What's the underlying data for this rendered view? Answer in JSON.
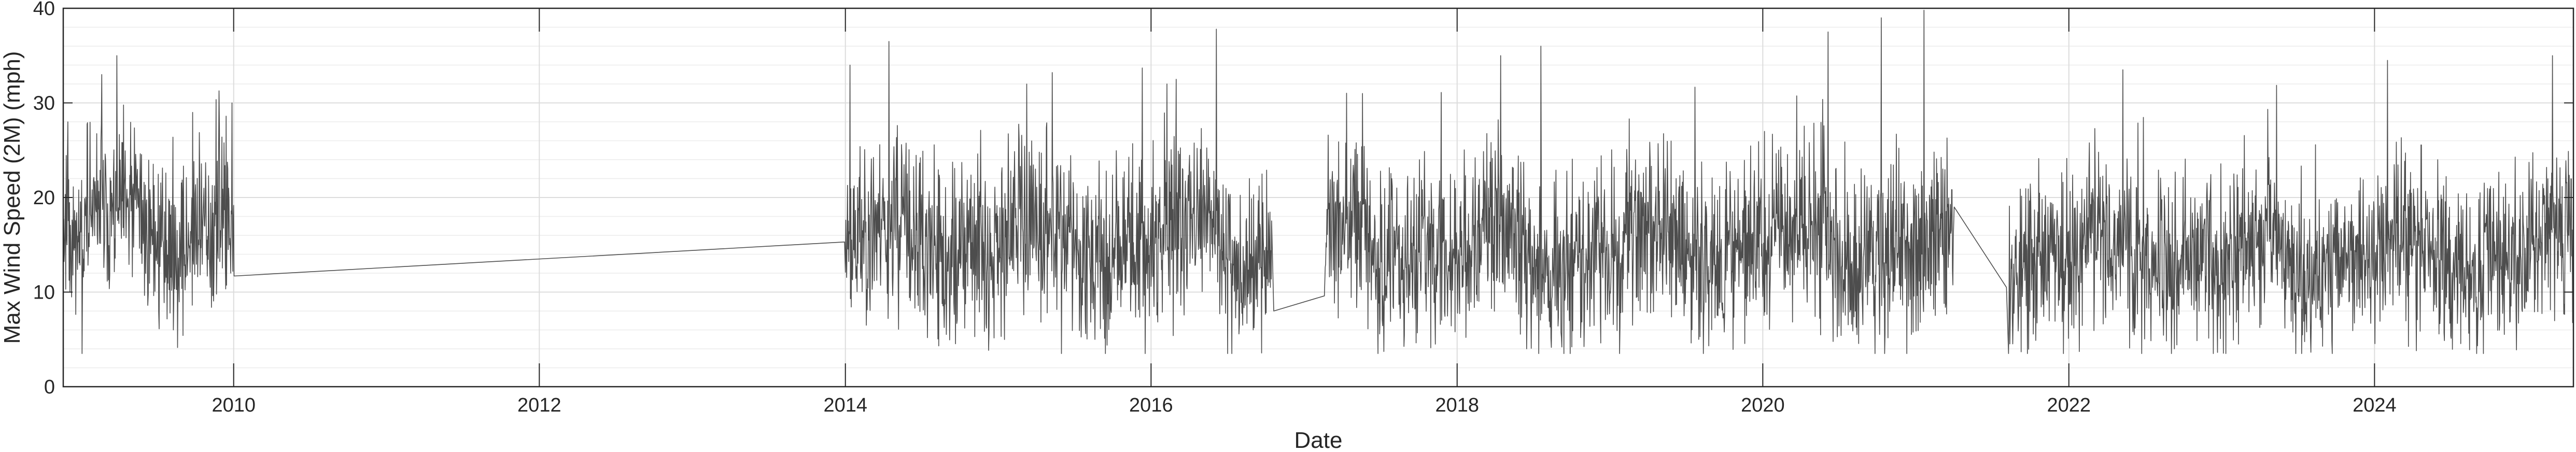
{
  "chart_data": {
    "type": "line",
    "title": "",
    "xlabel": "Date",
    "ylabel": "Max Wind Speed (2M) (mph)",
    "xlim": [
      "2008-11-20",
      "2025-04-20"
    ],
    "ylim": [
      0,
      40
    ],
    "x_ticks": [
      "2010",
      "2012",
      "2014",
      "2016",
      "2018",
      "2020",
      "2022",
      "2024"
    ],
    "y_ticks": [
      "0",
      "10",
      "20",
      "30",
      "40"
    ],
    "grid": true,
    "minor_grid": true,
    "line_color": "#4d4d4d",
    "series": [
      {
        "name": "",
        "segments": [
          {
            "start": "2008-11-20",
            "end": "2010-01-01",
            "mean": 16.5,
            "spread": 4.6,
            "seed": 11,
            "points": [
              [
                "2008-12-01",
                28.0
              ],
              [
                "2009-01-04",
                3.5
              ],
              [
                "2009-02-20",
                33.0
              ],
              [
                "2009-03-28",
                35.0
              ],
              [
                "2009-08-10",
                6.0
              ],
              [
                "2009-09-25",
                29.0
              ],
              [
                "2009-12-28",
                30.0
              ]
            ]
          },
          {
            "start": "2010-01-01",
            "end": "2014-01-01",
            "link": [
              [
                "2010-01-02",
                11.7
              ],
              [
                "2013-12-30",
                15.3
              ]
            ]
          },
          {
            "start": "2014-01-01",
            "end": "2016-10-15",
            "mean": 15.0,
            "spread": 5.0,
            "seed": 23,
            "points": [
              [
                "2014-01-12",
                34.0
              ],
              [
                "2014-04-15",
                36.5
              ],
              [
                "2014-02-20",
                6.5
              ],
              [
                "2015-03-10",
                32.0
              ],
              [
                "2016-03-01",
                32.5
              ],
              [
                "2016-06-05",
                37.8
              ],
              [
                "2016-09-01",
                6.0
              ],
              [
                "2015-08-20",
                5.0
              ]
            ]
          },
          {
            "start": "2016-10-15",
            "end": "2017-02-20",
            "link": [
              [
                "2016-10-20",
                8.0
              ],
              [
                "2017-02-18",
                9.6
              ]
            ]
          },
          {
            "start": "2017-02-20",
            "end": "2021-03-31",
            "mean": 14.2,
            "spread": 5.0,
            "seed": 37,
            "points": [
              [
                "2017-05-20",
                31.0
              ],
              [
                "2018-04-15",
                35.0
              ],
              [
                "2018-07-20",
                36.0
              ],
              [
                "2020-06-05",
                37.5
              ],
              [
                "2020-10-10",
                39.0
              ],
              [
                "2021-01-20",
                39.8
              ],
              [
                "2017-11-10",
                4.5
              ],
              [
                "2019-08-01",
                5.0
              ]
            ]
          },
          {
            "start": "2021-03-31",
            "end": "2021-08-10",
            "link": [
              [
                "2021-04-02",
                19.0
              ],
              [
                "2021-08-05",
                10.5
              ]
            ]
          },
          {
            "start": "2021-08-10",
            "end": "2025-04-20",
            "mean": 13.6,
            "spread": 4.8,
            "seed": 53,
            "points": [
              [
                "2022-05-10",
                33.5
              ],
              [
                "2024-02-01",
                34.5
              ],
              [
                "2025-03-01",
                35.0
              ],
              [
                "2022-09-10",
                4.0
              ],
              [
                "2024-04-10",
                3.8
              ],
              [
                "2023-02-10",
                4.5
              ]
            ]
          }
        ]
      }
    ]
  }
}
